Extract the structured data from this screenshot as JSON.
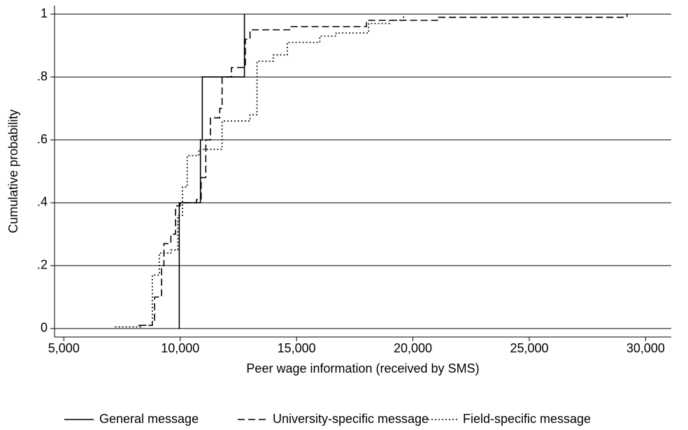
{
  "chart_data": {
    "type": "step",
    "x_label": "Peer wage information (received by SMS)",
    "y_label": "Cumulative probability",
    "xlim": [
      4600,
      31100
    ],
    "ylim": [
      -0.027,
      1.027
    ],
    "xticks": [
      {
        "value": 5000,
        "label": "5,000"
      },
      {
        "value": 10000,
        "label": "10,000"
      },
      {
        "value": 15000,
        "label": "15,000"
      },
      {
        "value": 20000,
        "label": "20,000"
      },
      {
        "value": 25000,
        "label": "25,000"
      },
      {
        "value": 30000,
        "label": "30,000"
      }
    ],
    "yticks": [
      0,
      {
        "value": 0.2,
        "label": ".2"
      },
      {
        "value": 0.4,
        "label": ".4"
      },
      {
        "value": 0.6,
        "label": ".6"
      },
      {
        "value": 0.8,
        "label": ".8"
      },
      1
    ],
    "grid": true,
    "legend": "bottom",
    "series": [
      {
        "name": "General message",
        "color": "#000000",
        "line_style": "solid",
        "x": [
          9940,
          9960,
          10800,
          10870,
          10950,
          12700,
          12760
        ],
        "values": [
          0,
          0.4,
          0.4,
          0.6,
          0.8,
          0.8,
          1
        ]
      },
      {
        "name": "University-specific message",
        "color": "#000000",
        "line_style": "dashed",
        "x": [
          8200,
          8800,
          8900,
          9200,
          9300,
          9600,
          9800,
          10000,
          10700,
          10900,
          11100,
          11300,
          11700,
          11800,
          12200,
          12800,
          13000,
          14700,
          18000,
          21100,
          29200
        ],
        "values": [
          0.01,
          0.02,
          0.1,
          0.2,
          0.27,
          0.3,
          0.39,
          0.4,
          0.41,
          0.48,
          0.6,
          0.67,
          0.7,
          0.8,
          0.83,
          0.92,
          0.95,
          0.96,
          0.98,
          0.99,
          1
        ]
      },
      {
        "name": "Field-specific message",
        "color": "#000000",
        "line_style": "dotted",
        "x": [
          7200,
          8300,
          8800,
          9100,
          9600,
          9900,
          10100,
          10300,
          10800,
          11800,
          13000,
          13300,
          14000,
          14600,
          16000,
          16700,
          18100,
          19000,
          19600
        ],
        "values": [
          0.005,
          0.01,
          0.17,
          0.24,
          0.25,
          0.36,
          0.45,
          0.55,
          0.57,
          0.66,
          0.68,
          0.85,
          0.87,
          0.91,
          0.93,
          0.94,
          0.97,
          0.98,
          1
        ]
      }
    ]
  }
}
